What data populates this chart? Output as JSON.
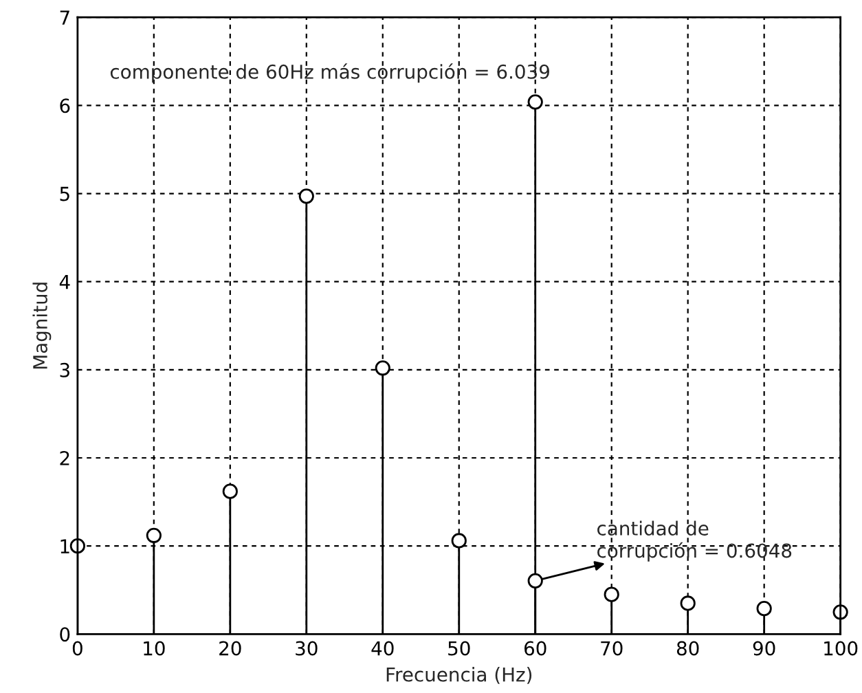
{
  "chart_data": {
    "type": "lollipop",
    "xlabel": "Frecuencia (Hz)",
    "ylabel": "Magnitud",
    "series": [
      {
        "color": "#000000",
        "x": [
          0,
          10,
          20,
          30,
          40,
          50,
          60,
          70,
          80,
          90,
          100
        ],
        "values": [
          1.0,
          1.12,
          1.62,
          4.97,
          3.02,
          1.06,
          6.039,
          0.45,
          0.35,
          0.29,
          0.25
        ]
      },
      {
        "color": "#000000",
        "x": [
          60
        ],
        "values": [
          0.6048
        ]
      }
    ],
    "marker": "circle",
    "grid": true,
    "xlim": [
      0,
      100
    ],
    "xticks": [
      0,
      10,
      20,
      30,
      40,
      50,
      60,
      70,
      80,
      90,
      100
    ],
    "ylim": [
      0,
      7
    ],
    "yticks": [
      0,
      1,
      2,
      3,
      4,
      5,
      6,
      7
    ],
    "annotations": [
      {
        "text": "componente de 60Hz más corrupción = 6.039",
        "x": 60,
        "y": 6.039
      },
      {
        "text": "cantidad de\ncorrupción = 0.6048",
        "x": 60,
        "y": 0.6048
      }
    ]
  }
}
